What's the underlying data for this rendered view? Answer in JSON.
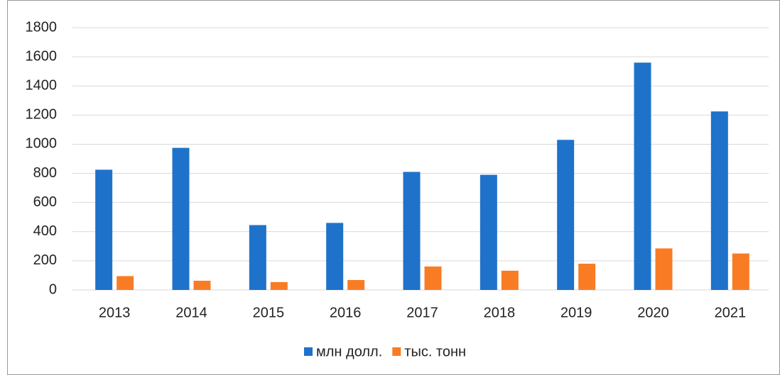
{
  "chart_data": {
    "type": "bar",
    "categories": [
      "2013",
      "2014",
      "2015",
      "2016",
      "2017",
      "2018",
      "2019",
      "2020",
      "2021"
    ],
    "series": [
      {
        "name": "млн долл.",
        "color": "#1f72c9",
        "values": [
          825,
          975,
          445,
          460,
          810,
          790,
          1030,
          1560,
          1225
        ]
      },
      {
        "name": "тыс. тонн",
        "color": "#f97c25",
        "values": [
          95,
          63,
          54,
          68,
          161,
          132,
          180,
          285,
          250
        ]
      }
    ],
    "ylim": [
      0,
      1800
    ],
    "yticks": [
      0,
      200,
      400,
      600,
      800,
      1000,
      1200,
      1400,
      1600,
      1800
    ],
    "grid": true,
    "legend": "bottom"
  }
}
